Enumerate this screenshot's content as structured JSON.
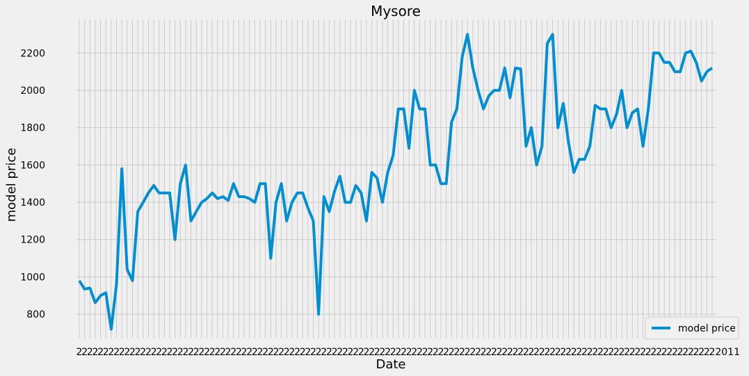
{
  "chart_data": {
    "type": "line",
    "title": "Mysore",
    "xlabel": "Date",
    "ylabel": "model price",
    "ylim": [
      670,
      2380
    ],
    "yticks": [
      800,
      1000,
      1200,
      1400,
      1600,
      1800,
      2000,
      2200
    ],
    "grid": true,
    "legend_position": "lower-right",
    "x_tick_label_text": "2",
    "x_tick_label_right_text": "2011",
    "series": [
      {
        "name": "model price",
        "color": "#008fd5",
        "values": [
          980,
          935,
          940,
          862,
          900,
          915,
          720,
          960,
          1580,
          1040,
          980,
          1350,
          1400,
          1450,
          1490,
          1450,
          1450,
          1450,
          1200,
          1500,
          1600,
          1300,
          1350,
          1400,
          1420,
          1450,
          1420,
          1430,
          1410,
          1500,
          1430,
          1430,
          1420,
          1400,
          1500,
          1500,
          1100,
          1400,
          1500,
          1300,
          1400,
          1450,
          1450,
          1370,
          1300,
          800,
          1430,
          1350,
          1460,
          1540,
          1400,
          1400,
          1490,
          1450,
          1300,
          1560,
          1530,
          1400,
          1560,
          1650,
          1900,
          1900,
          1690,
          2000,
          1900,
          1900,
          1600,
          1600,
          1500,
          1500,
          1830,
          1900,
          2180,
          2300,
          2120,
          2000,
          1900,
          1970,
          2000,
          2000,
          2120,
          1960,
          2120,
          2115,
          1700,
          1800,
          1600,
          1700,
          2250,
          2300,
          1800,
          1930,
          1720,
          1560,
          1630,
          1630,
          1700,
          1920,
          1900,
          1900,
          1800,
          1870,
          2000,
          1800,
          1880,
          1900,
          1700,
          1900,
          2200,
          2200,
          2150,
          2150,
          2100,
          2100,
          2200,
          2210,
          2150,
          2050,
          2100,
          2120
        ]
      }
    ]
  }
}
